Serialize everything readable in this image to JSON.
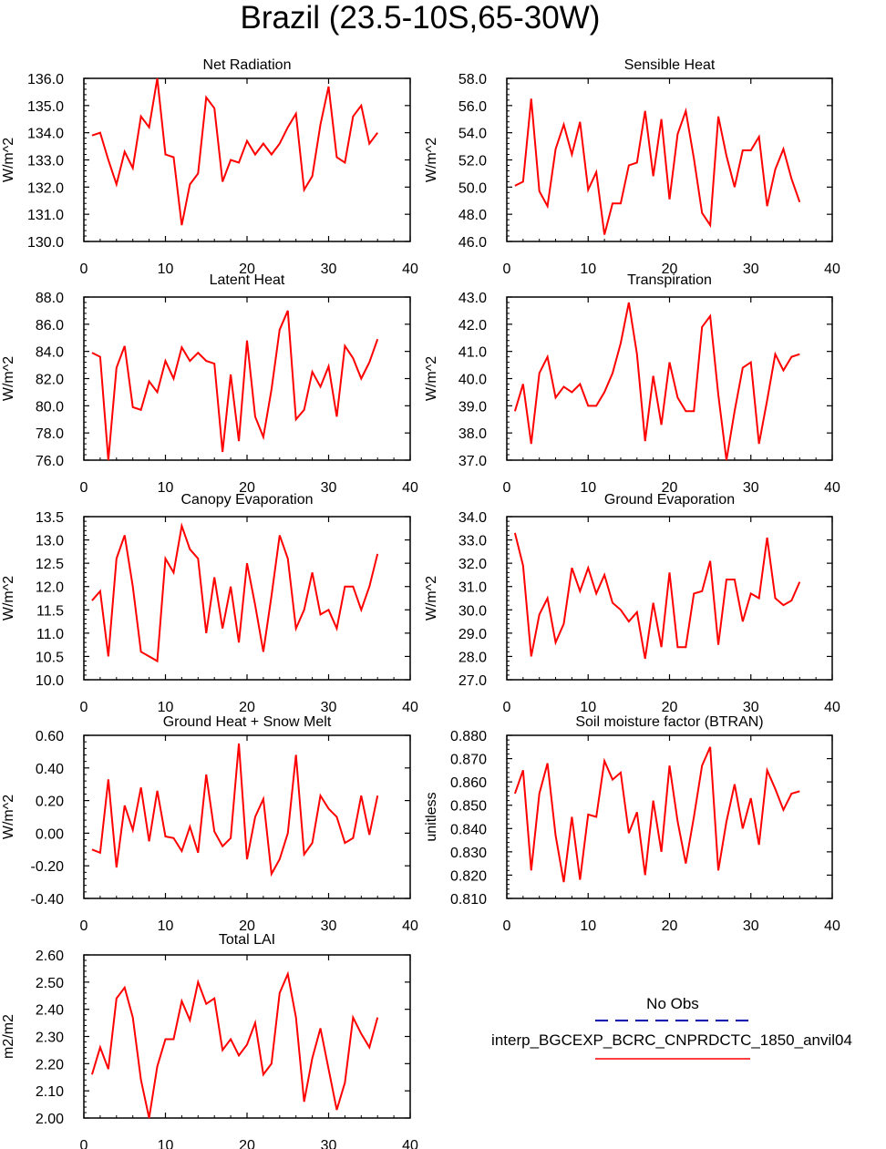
{
  "page_title": "Brazil (23.5-10S,65-30W)",
  "colors": {
    "model": "#ff0000",
    "obs": "#0000b0",
    "axis": "#000000"
  },
  "legend": {
    "obs_label": "No Obs",
    "model_label": "interp_BGCEXP_BCRC_CNPRDCTC_1850_anvil04"
  },
  "chart_data": [
    {
      "type": "line",
      "title": "Net Radiation",
      "xlabel": "",
      "ylabel": "W/m^2",
      "xlim": [
        0,
        40
      ],
      "ylim": [
        130.0,
        136.0
      ],
      "xticks": [
        "0",
        "10",
        "20",
        "30",
        "40"
      ],
      "yticks": [
        "130.0",
        "131.0",
        "132.0",
        "133.0",
        "134.0",
        "135.0",
        "136.0"
      ],
      "x": [
        1,
        2,
        3,
        4,
        5,
        6,
        7,
        8,
        9,
        10,
        11,
        12,
        13,
        14,
        15,
        16,
        17,
        18,
        19,
        20,
        21,
        22,
        23,
        24,
        25,
        26,
        27,
        28,
        29,
        30,
        31,
        32,
        33,
        34,
        35,
        36
      ],
      "series": [
        {
          "name": "interp_BGCEXP_BCRC_CNPRDCTC_1850_anvil04",
          "values": [
            133.9,
            134.0,
            133.0,
            132.1,
            133.3,
            132.7,
            134.6,
            134.2,
            136.0,
            133.2,
            133.1,
            130.6,
            132.1,
            132.5,
            135.3,
            134.9,
            132.2,
            133.0,
            132.9,
            133.7,
            133.2,
            133.6,
            133.2,
            133.6,
            134.2,
            134.7,
            131.9,
            132.4,
            134.3,
            135.7,
            133.1,
            132.9,
            134.6,
            135.0,
            133.6,
            134.0
          ]
        }
      ]
    },
    {
      "type": "line",
      "title": "Sensible Heat",
      "xlabel": "",
      "ylabel": "W/m^2",
      "xlim": [
        0,
        40
      ],
      "ylim": [
        46.0,
        58.0
      ],
      "xticks": [
        "0",
        "10",
        "20",
        "30",
        "40"
      ],
      "yticks": [
        "46.0",
        "48.0",
        "50.0",
        "52.0",
        "54.0",
        "56.0",
        "58.0"
      ],
      "x": [
        1,
        2,
        3,
        4,
        5,
        6,
        7,
        8,
        9,
        10,
        11,
        12,
        13,
        14,
        15,
        16,
        17,
        18,
        19,
        20,
        21,
        22,
        23,
        24,
        25,
        26,
        27,
        28,
        29,
        30,
        31,
        32,
        33,
        34,
        35,
        36
      ],
      "series": [
        {
          "name": "interp_BGCEXP_BCRC_CNPRDCTC_1850_anvil04",
          "values": [
            50.1,
            50.4,
            56.5,
            49.7,
            48.6,
            52.8,
            54.6,
            52.4,
            54.8,
            49.8,
            51.1,
            46.5,
            48.8,
            48.8,
            51.6,
            51.8,
            55.6,
            50.8,
            55.0,
            49.1,
            53.9,
            55.6,
            52.1,
            48.1,
            47.2,
            55.2,
            52.3,
            50.0,
            52.7,
            52.7,
            53.7,
            48.6,
            51.3,
            52.8,
            50.6,
            48.9
          ]
        }
      ]
    },
    {
      "type": "line",
      "title": "Latent Heat",
      "xlabel": "",
      "ylabel": "W/m^2",
      "xlim": [
        0,
        40
      ],
      "ylim": [
        76.0,
        88.0
      ],
      "xticks": [
        "0",
        "10",
        "20",
        "30",
        "40"
      ],
      "yticks": [
        "76.0",
        "78.0",
        "80.0",
        "82.0",
        "84.0",
        "86.0",
        "88.0"
      ],
      "x": [
        1,
        2,
        3,
        4,
        5,
        6,
        7,
        8,
        9,
        10,
        11,
        12,
        13,
        14,
        15,
        16,
        17,
        18,
        19,
        20,
        21,
        22,
        23,
        24,
        25,
        26,
        27,
        28,
        29,
        30,
        31,
        32,
        33,
        34,
        35,
        36
      ],
      "series": [
        {
          "name": "interp_BGCEXP_BCRC_CNPRDCTC_1850_anvil04",
          "values": [
            83.9,
            83.6,
            76.0,
            82.8,
            84.4,
            79.9,
            79.7,
            81.8,
            81.0,
            83.3,
            82.0,
            84.3,
            83.3,
            83.9,
            83.3,
            83.1,
            76.6,
            82.3,
            77.4,
            84.8,
            79.2,
            77.7,
            81.2,
            85.6,
            87.0,
            79.0,
            79.7,
            82.5,
            81.4,
            82.9,
            79.2,
            84.4,
            83.5,
            82.0,
            83.2,
            84.9
          ]
        }
      ]
    },
    {
      "type": "line",
      "title": "Transpiration",
      "xlabel": "",
      "ylabel": "W/m^2",
      "xlim": [
        0,
        40
      ],
      "ylim": [
        37.0,
        43.0
      ],
      "xticks": [
        "0",
        "10",
        "20",
        "30",
        "40"
      ],
      "yticks": [
        "37.0",
        "38.0",
        "39.0",
        "40.0",
        "41.0",
        "42.0",
        "43.0"
      ],
      "x": [
        1,
        2,
        3,
        4,
        5,
        6,
        7,
        8,
        9,
        10,
        11,
        12,
        13,
        14,
        15,
        16,
        17,
        18,
        19,
        20,
        21,
        22,
        23,
        24,
        25,
        26,
        27,
        28,
        29,
        30,
        31,
        32,
        33,
        34,
        35,
        36
      ],
      "series": [
        {
          "name": "interp_BGCEXP_BCRC_CNPRDCTC_1850_anvil04",
          "values": [
            38.8,
            39.8,
            37.6,
            40.2,
            40.8,
            39.3,
            39.7,
            39.5,
            39.8,
            39.0,
            39.0,
            39.5,
            40.2,
            41.3,
            42.8,
            40.9,
            37.7,
            40.1,
            38.3,
            40.6,
            39.3,
            38.8,
            38.8,
            41.9,
            42.3,
            39.4,
            37.0,
            38.8,
            40.4,
            40.6,
            37.6,
            39.2,
            40.9,
            40.3,
            40.8,
            40.9
          ]
        }
      ]
    },
    {
      "type": "line",
      "title": "Canopy Evaporation",
      "xlabel": "",
      "ylabel": "W/m^2",
      "xlim": [
        0,
        40
      ],
      "ylim": [
        10.0,
        13.5
      ],
      "xticks": [
        "0",
        "10",
        "20",
        "30",
        "40"
      ],
      "yticks": [
        "10.0",
        "10.5",
        "11.0",
        "11.5",
        "12.0",
        "12.5",
        "13.0",
        "13.5"
      ],
      "x": [
        1,
        2,
        3,
        4,
        5,
        6,
        7,
        8,
        9,
        10,
        11,
        12,
        13,
        14,
        15,
        16,
        17,
        18,
        19,
        20,
        21,
        22,
        23,
        24,
        25,
        26,
        27,
        28,
        29,
        30,
        31,
        32,
        33,
        34,
        35,
        36
      ],
      "series": [
        {
          "name": "interp_BGCEXP_BCRC_CNPRDCTC_1850_anvil04",
          "values": [
            11.7,
            11.9,
            10.5,
            12.6,
            13.1,
            12.0,
            10.6,
            10.5,
            10.4,
            12.6,
            12.3,
            13.3,
            12.8,
            12.6,
            11.0,
            12.2,
            11.1,
            12.0,
            10.8,
            12.5,
            11.6,
            10.6,
            11.8,
            13.1,
            12.6,
            11.1,
            11.5,
            12.3,
            11.4,
            11.5,
            11.1,
            12.0,
            12.0,
            11.5,
            12.0,
            12.7
          ]
        }
      ]
    },
    {
      "type": "line",
      "title": "Ground Evaporation",
      "xlabel": "",
      "ylabel": "W/m^2",
      "xlim": [
        0,
        40
      ],
      "ylim": [
        27.0,
        34.0
      ],
      "xticks": [
        "0",
        "10",
        "20",
        "30",
        "40"
      ],
      "yticks": [
        "27.0",
        "28.0",
        "29.0",
        "30.0",
        "31.0",
        "32.0",
        "33.0",
        "34.0"
      ],
      "x": [
        1,
        2,
        3,
        4,
        5,
        6,
        7,
        8,
        9,
        10,
        11,
        12,
        13,
        14,
        15,
        16,
        17,
        18,
        19,
        20,
        21,
        22,
        23,
        24,
        25,
        26,
        27,
        28,
        29,
        30,
        31,
        32,
        33,
        34,
        35,
        36
      ],
      "series": [
        {
          "name": "interp_BGCEXP_BCRC_CNPRDCTC_1850_anvil04",
          "values": [
            33.3,
            31.9,
            28.0,
            29.8,
            30.5,
            28.6,
            29.4,
            31.8,
            30.8,
            31.8,
            30.7,
            31.5,
            30.3,
            30.0,
            29.5,
            29.9,
            27.9,
            30.3,
            28.4,
            31.6,
            28.4,
            28.4,
            30.7,
            30.8,
            32.1,
            28.5,
            31.3,
            31.3,
            29.5,
            30.7,
            30.5,
            33.1,
            30.5,
            30.2,
            30.4,
            31.2
          ]
        }
      ]
    },
    {
      "type": "line",
      "title": "Ground Heat + Snow Melt",
      "xlabel": "",
      "ylabel": "W/m^2",
      "xlim": [
        0,
        40
      ],
      "ylim": [
        -0.4,
        0.6
      ],
      "xticks": [
        "0",
        "10",
        "20",
        "30",
        "40"
      ],
      "yticks": [
        "-0.40",
        "-0.20",
        "0.00",
        "0.20",
        "0.40",
        "0.60"
      ],
      "x": [
        1,
        2,
        3,
        4,
        5,
        6,
        7,
        8,
        9,
        10,
        11,
        12,
        13,
        14,
        15,
        16,
        17,
        18,
        19,
        20,
        21,
        22,
        23,
        24,
        25,
        26,
        27,
        28,
        29,
        30,
        31,
        32,
        33,
        34,
        35,
        36
      ],
      "series": [
        {
          "name": "interp_BGCEXP_BCRC_CNPRDCTC_1850_anvil04",
          "values": [
            -0.1,
            -0.12,
            0.33,
            -0.21,
            0.17,
            0.02,
            0.28,
            -0.05,
            0.26,
            -0.02,
            -0.03,
            -0.11,
            0.04,
            -0.12,
            0.36,
            0.01,
            -0.08,
            -0.03,
            0.55,
            -0.16,
            0.1,
            0.21,
            -0.25,
            -0.16,
            0.0,
            0.48,
            -0.13,
            -0.06,
            0.23,
            0.15,
            0.1,
            -0.06,
            -0.03,
            0.23,
            -0.01,
            0.23
          ]
        }
      ]
    },
    {
      "type": "line",
      "title": "Soil moisture factor (BTRAN)",
      "xlabel": "",
      "ylabel": "unitless",
      "xlim": [
        0,
        40
      ],
      "ylim": [
        0.81,
        0.88
      ],
      "xticks": [
        "0",
        "10",
        "20",
        "30",
        "40"
      ],
      "yticks": [
        "0.810",
        "0.820",
        "0.830",
        "0.840",
        "0.850",
        "0.860",
        "0.870",
        "0.880"
      ],
      "x": [
        1,
        2,
        3,
        4,
        5,
        6,
        7,
        8,
        9,
        10,
        11,
        12,
        13,
        14,
        15,
        16,
        17,
        18,
        19,
        20,
        21,
        22,
        23,
        24,
        25,
        26,
        27,
        28,
        29,
        30,
        31,
        32,
        33,
        34,
        35,
        36
      ],
      "series": [
        {
          "name": "interp_BGCEXP_BCRC_CNPRDCTC_1850_anvil04",
          "values": [
            0.855,
            0.865,
            0.822,
            0.855,
            0.868,
            0.837,
            0.817,
            0.845,
            0.818,
            0.846,
            0.845,
            0.869,
            0.861,
            0.864,
            0.838,
            0.847,
            0.82,
            0.852,
            0.83,
            0.867,
            0.843,
            0.825,
            0.845,
            0.867,
            0.875,
            0.822,
            0.843,
            0.859,
            0.84,
            0.853,
            0.833,
            0.865,
            0.857,
            0.848,
            0.855,
            0.856
          ]
        }
      ]
    },
    {
      "type": "line",
      "title": "Total LAI",
      "xlabel": "",
      "ylabel": "m2/m2",
      "xlim": [
        0,
        40
      ],
      "ylim": [
        2.0,
        2.6
      ],
      "xticks": [
        "0",
        "10",
        "20",
        "30",
        "40"
      ],
      "yticks": [
        "2.00",
        "2.10",
        "2.20",
        "2.30",
        "2.40",
        "2.50",
        "2.60"
      ],
      "x": [
        1,
        2,
        3,
        4,
        5,
        6,
        7,
        8,
        9,
        10,
        11,
        12,
        13,
        14,
        15,
        16,
        17,
        18,
        19,
        20,
        21,
        22,
        23,
        24,
        25,
        26,
        27,
        28,
        29,
        30,
        31,
        32,
        33,
        34,
        35,
        36
      ],
      "series": [
        {
          "name": "interp_BGCEXP_BCRC_CNPRDCTC_1850_anvil04",
          "values": [
            2.16,
            2.26,
            2.18,
            2.44,
            2.48,
            2.37,
            2.14,
            2.0,
            2.19,
            2.29,
            2.29,
            2.43,
            2.36,
            2.5,
            2.42,
            2.44,
            2.25,
            2.29,
            2.23,
            2.27,
            2.35,
            2.16,
            2.2,
            2.46,
            2.53,
            2.37,
            2.06,
            2.22,
            2.33,
            2.18,
            2.03,
            2.13,
            2.37,
            2.31,
            2.26,
            2.37
          ]
        }
      ]
    }
  ]
}
